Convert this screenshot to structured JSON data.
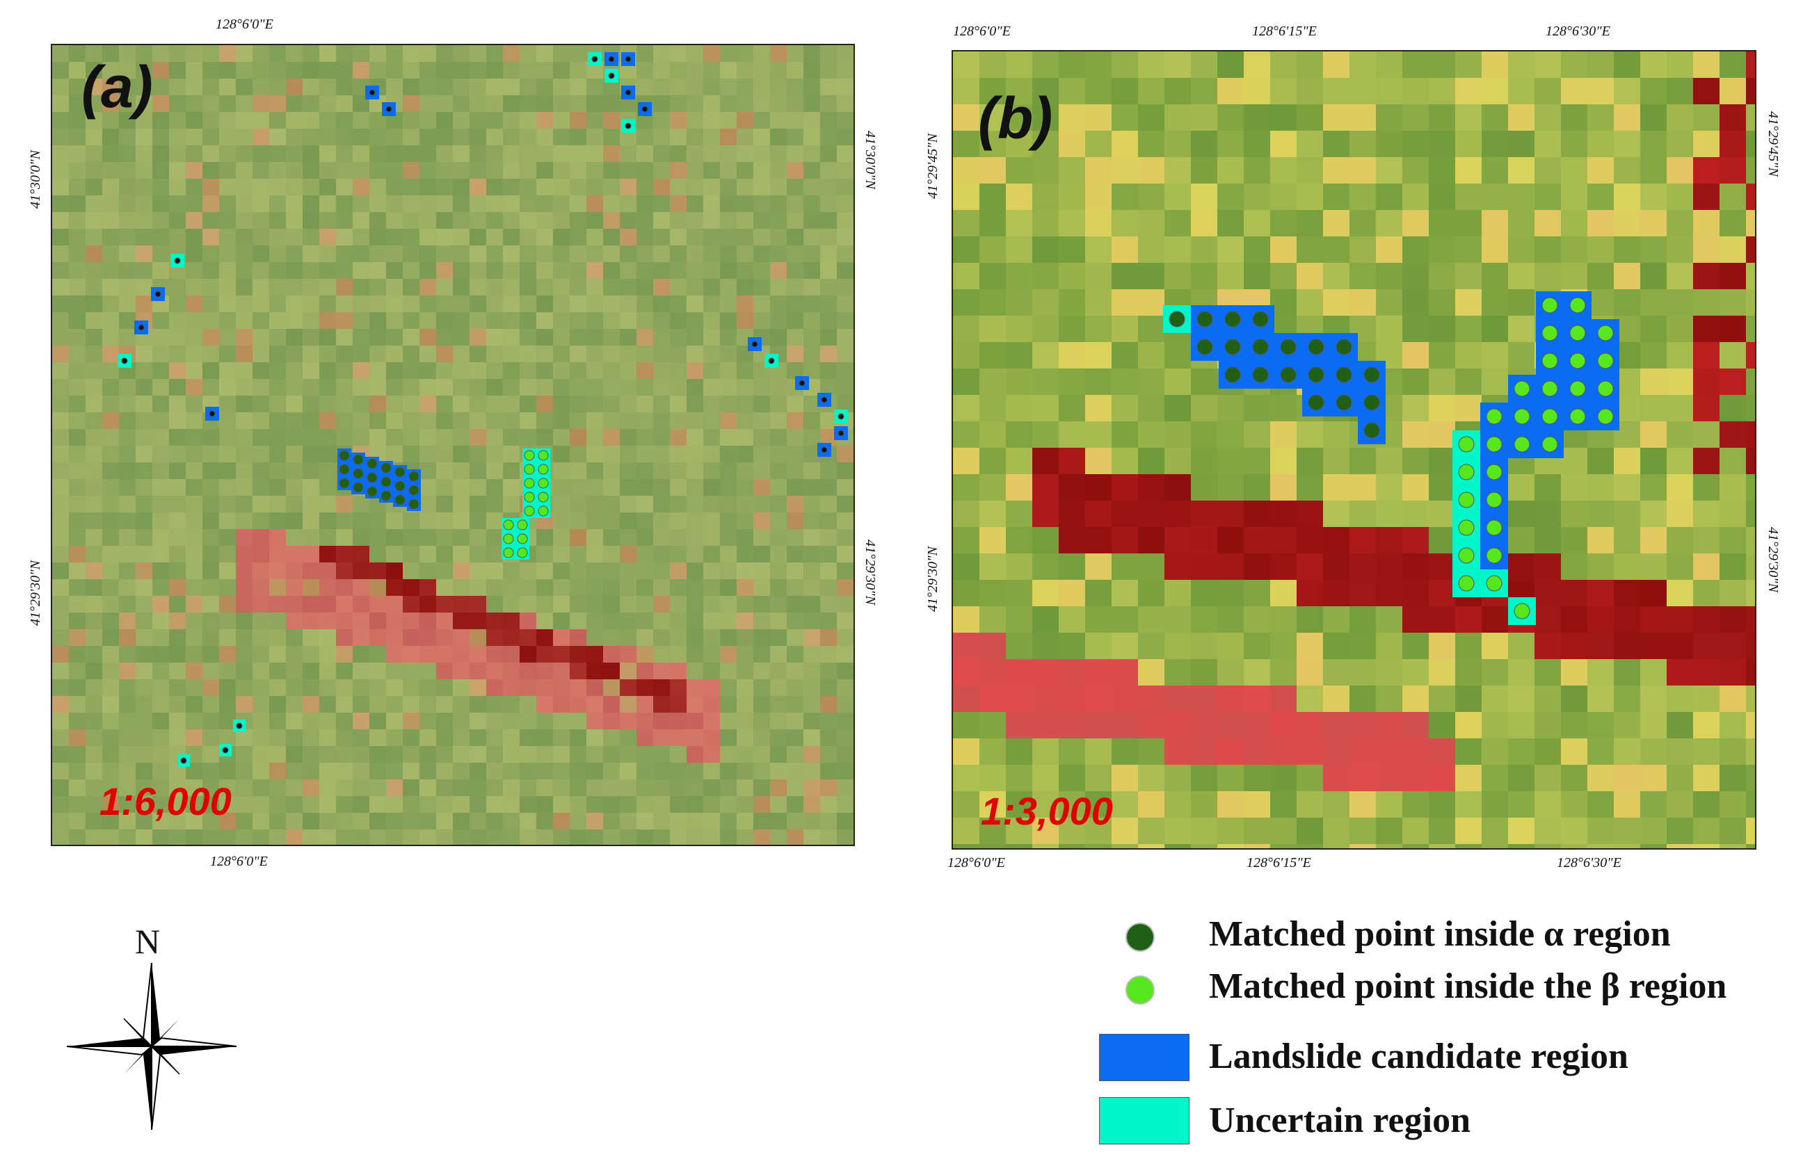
{
  "map_a": {
    "tag": "(a)",
    "scale": "1:6,000",
    "top_lon": "128°6'0\"E",
    "bottom_lon": "128°6'0\"E",
    "left_lat_1": "41°30'0\"N",
    "left_lat_2": "41°29'30\"N",
    "right_lat_1": "41°30'0\"N",
    "right_lat_2": "41°29'30\"N"
  },
  "map_b": {
    "tag": "(b)",
    "scale": "1:3,000",
    "top_lon_1": "128°6'0\"E",
    "top_lon_2": "128°6'15\"E",
    "top_lon_3": "128°6'30\"E",
    "bottom_lon_1": "128°6'0\"E",
    "bottom_lon_2": "128°6'15\"E",
    "bottom_lon_3": "128°6'30\"E",
    "left_lat_1": "41°29'45\"N",
    "left_lat_2": "41°29'30\"N",
    "right_lat_1": "41°29'45\"N",
    "right_lat_2": "41°29'30\"N"
  },
  "north_arrow": {
    "label": "N"
  },
  "legend": {
    "items": [
      {
        "label": "Matched point inside α region",
        "symbol": "dot",
        "color": "#1f5f16"
      },
      {
        "label": "Matched point inside the β region",
        "symbol": "dot",
        "color": "#56e81c"
      },
      {
        "label": "Landslide candidate region",
        "symbol": "box",
        "color": "#0a6cf2"
      },
      {
        "label": "Uncertain region",
        "symbol": "box",
        "color": "#00f5c8"
      }
    ]
  },
  "colors": {
    "candidate": "#0a6cf2",
    "uncertain": "#00f5c8",
    "alpha_point": "#1f5f16",
    "beta_point": "#56e81c",
    "scale_text": "#e00000",
    "dark_red": "#8e0f0f",
    "bright_red": "#e04b4b",
    "green_base": "#7ea44a",
    "yellow": "#d8d25a"
  }
}
